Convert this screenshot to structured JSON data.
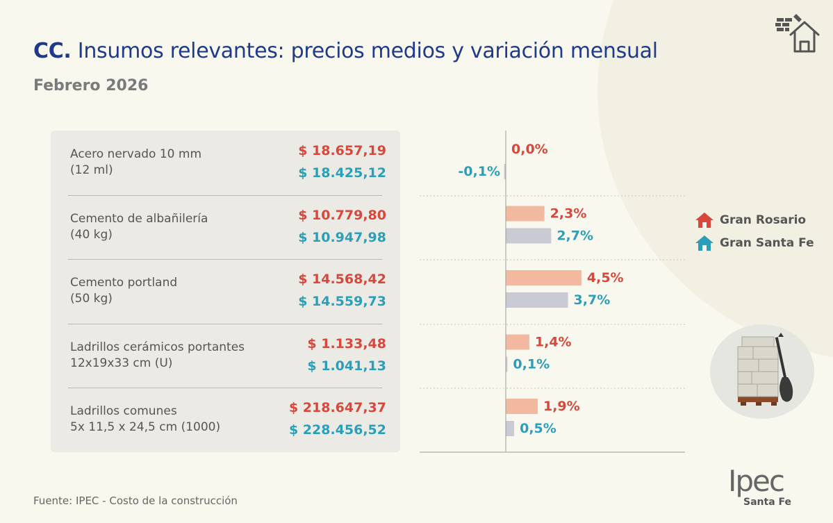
{
  "header": {
    "title_prefix": "CC.",
    "title_text": "Insumos relevantes: precios medios y variación mensual",
    "subtitle": "Febrero 2026"
  },
  "legend": [
    {
      "label": "Gran Rosario",
      "color": "#d8473c"
    },
    {
      "label": "Gran Santa Fe",
      "color": "#2a9fb7"
    }
  ],
  "items": [
    {
      "name1": "Acero nervado 10 mm",
      "name2": "(12 ml)",
      "price_gr": "$ 18.657,19",
      "price_gsf": "$ 18.425,12"
    },
    {
      "name1": "Cemento de albañilería",
      "name2": "(40 kg)",
      "price_gr": "$ 10.779,80",
      "price_gsf": "$ 10.947,98"
    },
    {
      "name1": "Cemento portland",
      "name2": "(50 kg)",
      "price_gr": "$ 14.568,42",
      "price_gsf": "$ 14.559,73"
    },
    {
      "name1": "Ladrillos cerámicos portantes",
      "name2": "12x19x33 cm (U)",
      "price_gr": "$ 1.133,48",
      "price_gsf": "$ 1.041,13"
    },
    {
      "name1": "Ladrillos comunes",
      "name2": "5x 11,5 x 24,5 cm (1000)",
      "price_gr": "$ 218.647,37",
      "price_gsf": "$ 228.456,52"
    }
  ],
  "chart_data": {
    "type": "bar",
    "orientation": "horizontal",
    "categories": [
      "Acero nervado 10 mm (12 ml)",
      "Cemento de albañilería (40 kg)",
      "Cemento portland (50 kg)",
      "Ladrillos cerámicos portantes 12x19x33 cm (U)",
      "Ladrillos comunes 5x 11,5 x 24,5 cm (1000)"
    ],
    "series": [
      {
        "name": "Gran Rosario",
        "values": [
          0.0,
          2.3,
          4.5,
          1.4,
          1.9
        ],
        "labels": [
          "0,0%",
          "2,3%",
          "4,5%",
          "1,4%",
          "1,9%"
        ],
        "bar_color": "#f2b9a0",
        "label_color": "#d8473c"
      },
      {
        "name": "Gran Santa Fe",
        "values": [
          -0.1,
          2.7,
          3.7,
          0.1,
          0.5
        ],
        "labels": [
          "-0,1%",
          "2,7%",
          "3,7%",
          "0,1%",
          "0,5%"
        ],
        "bar_color": "#c9cad4",
        "label_color": "#2a9fb7"
      }
    ],
    "unit": "%",
    "grid": false,
    "legend_position": "right"
  },
  "footer": {
    "source": "Fuente: IPEC - Costo de la construcción"
  },
  "logo": {
    "text": "Ipec",
    "subtext": "Santa Fe"
  },
  "icons": {
    "top_right": "house-brick-trowel-icon",
    "illustration": "brick-pallet-shovel-icon",
    "legend_marker": "house-icon"
  }
}
